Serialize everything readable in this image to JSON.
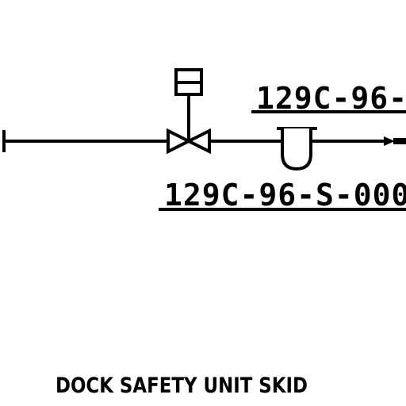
{
  "labels": {
    "upper_tag": "129C-96-",
    "lower_tag": "129C-96-S-000",
    "caption": "DOCK SAFETY UNIT SKID"
  },
  "colors": {
    "line": "#000000",
    "background": "#ffffff"
  },
  "symbols": {
    "actuator": "actuator-box-icon",
    "valve": "gate-valve-icon",
    "strainer": "strainer-icon",
    "line_end": "flange-icon",
    "outlet": "arrow-right-icon"
  }
}
